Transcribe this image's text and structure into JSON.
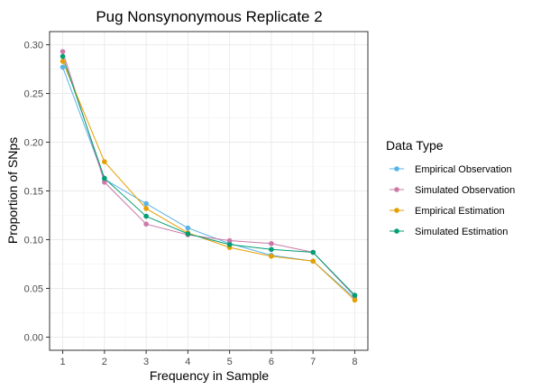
{
  "chart_data": {
    "type": "line",
    "title": "Pug Nonsynonymous Replicate 2",
    "xlabel": "Frequency in Sample",
    "ylabel": "Proportion of SNps",
    "x": [
      1,
      2,
      3,
      4,
      5,
      6,
      7,
      8
    ],
    "xlim": [
      1,
      8
    ],
    "ylim": [
      0.0,
      0.3
    ],
    "x_ticks": [
      "1",
      "2",
      "3",
      "4",
      "5",
      "6",
      "7",
      "8"
    ],
    "y_ticks": [
      "0.00",
      "0.05",
      "0.10",
      "0.15",
      "0.20",
      "0.25",
      "0.30"
    ],
    "y_tick_values": [
      0.0,
      0.05,
      0.1,
      0.15,
      0.2,
      0.25,
      0.3
    ],
    "grid": true,
    "legend_position": "right",
    "legend_title": "Data Type",
    "series": [
      {
        "name": "Empirical Observation",
        "color": "#56B4E9",
        "values": [
          0.277,
          0.162,
          0.137,
          0.112,
          0.096,
          0.084,
          0.078,
          0.04
        ]
      },
      {
        "name": "Simulated Observation",
        "color": "#CC79A7",
        "values": [
          0.293,
          0.159,
          0.116,
          0.105,
          0.099,
          0.096,
          0.087,
          0.042
        ]
      },
      {
        "name": "Empirical Estimation",
        "color": "#E69F00",
        "values": [
          0.283,
          0.18,
          0.132,
          0.107,
          0.092,
          0.083,
          0.078,
          0.038
        ]
      },
      {
        "name": "Simulated Estimation",
        "color": "#009E73",
        "values": [
          0.288,
          0.163,
          0.124,
          0.106,
          0.095,
          0.09,
          0.087,
          0.043
        ]
      }
    ]
  }
}
